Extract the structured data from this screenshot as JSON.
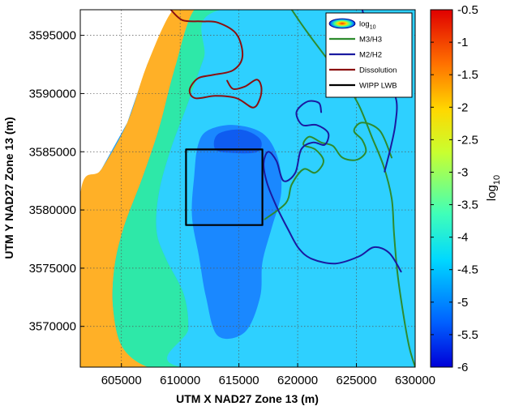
{
  "chart_data": {
    "type": "heatmap",
    "title": "",
    "xlabel": "UTM X NAD27 Zone 13 (m)",
    "ylabel": "UTM Y NAD27 Zone 13 (m)",
    "xlim": [
      601500,
      630000
    ],
    "ylim": [
      3566500,
      3597200
    ],
    "x_ticks": [
      605000,
      610000,
      615000,
      620000,
      625000,
      630000
    ],
    "x_tick_labels": [
      "605000",
      "610000",
      "615000",
      "620000",
      "625000",
      "630000"
    ],
    "y_ticks": [
      3570000,
      3575000,
      3580000,
      3585000,
      3590000,
      3595000
    ],
    "y_tick_labels": [
      "3570000",
      "3575000",
      "3580000",
      "3585000",
      "3590000",
      "3595000"
    ],
    "grid": true,
    "colorbar": {
      "label": "log",
      "label_sub": "10",
      "range": [
        -6,
        -0.5
      ],
      "ticks": [
        -0.5,
        -1,
        -1.5,
        -2,
        -2.5,
        -3,
        -3.5,
        -4,
        -4.5,
        -5,
        -5.5,
        -6
      ],
      "tick_labels": [
        "-0.5",
        "-1",
        "-1.5",
        "-2",
        "-2.5",
        "-3",
        "-3.5",
        "-4",
        "-4.5",
        "-5",
        "-5.5",
        "-6"
      ],
      "colormap": "jet"
    },
    "legend": {
      "placement": "top-right",
      "entries": [
        {
          "name": "log",
          "sub": "10",
          "kind": "swatch"
        },
        {
          "name": "M3/H3",
          "color": "#2e8b2e",
          "kind": "line"
        },
        {
          "name": "M2/H2",
          "color": "#1a1aa0",
          "kind": "line"
        },
        {
          "name": "Dissolution",
          "color": "#8b1010",
          "kind": "line"
        },
        {
          "name": "WIPP LWB",
          "color": "#000000",
          "kind": "line"
        }
      ]
    },
    "regions": [
      {
        "name": "no-data",
        "value": null,
        "color": "#ffffff",
        "points": [
          [
            601500,
            3597200
          ],
          [
            609400,
            3597200
          ],
          [
            607200,
            3592500
          ],
          [
            605500,
            3587500
          ],
          [
            603300,
            3583500
          ],
          [
            601500,
            3581200
          ]
        ]
      },
      {
        "name": "orange-zone",
        "value": -1.6,
        "color": "#ffb027",
        "points": [
          [
            601500,
            3581200
          ],
          [
            603300,
            3583500
          ],
          [
            605500,
            3587500
          ],
          [
            607200,
            3592500
          ],
          [
            609400,
            3597200
          ],
          [
            611200,
            3597200
          ],
          [
            609500,
            3592000
          ],
          [
            608200,
            3587000
          ],
          [
            606800,
            3582800
          ],
          [
            605200,
            3578500
          ],
          [
            604400,
            3575000
          ],
          [
            604300,
            3571500
          ],
          [
            605100,
            3568200
          ],
          [
            607300,
            3566500
          ],
          [
            601500,
            3566500
          ]
        ]
      },
      {
        "name": "green-zone",
        "value": -4.2,
        "color": "#2ee8a8",
        "points": [
          [
            611200,
            3597200
          ],
          [
            613500,
            3597200
          ],
          [
            612000,
            3593000
          ],
          [
            610600,
            3589000
          ],
          [
            609200,
            3585200
          ],
          [
            608200,
            3581500
          ],
          [
            608000,
            3578200
          ],
          [
            608800,
            3575800
          ],
          [
            610300,
            3572800
          ],
          [
            610700,
            3569800
          ],
          [
            610200,
            3566500
          ],
          [
            607300,
            3566500
          ],
          [
            605100,
            3568200
          ],
          [
            604300,
            3571500
          ],
          [
            604400,
            3575000
          ],
          [
            605200,
            3578500
          ],
          [
            606800,
            3582800
          ],
          [
            608200,
            3587000
          ],
          [
            609500,
            3592000
          ]
        ]
      },
      {
        "name": "cyan-zone",
        "value": -4.6,
        "color": "#2ed0ff",
        "points": [
          [
            613500,
            3597200
          ],
          [
            630000,
            3597200
          ],
          [
            630000,
            3566500
          ],
          [
            610200,
            3566500
          ],
          [
            610700,
            3569800
          ],
          [
            610300,
            3572800
          ],
          [
            608800,
            3575800
          ],
          [
            608000,
            3578200
          ],
          [
            608200,
            3581500
          ],
          [
            609200,
            3585200
          ],
          [
            610600,
            3589000
          ],
          [
            612000,
            3593000
          ]
        ]
      },
      {
        "name": "blue-core",
        "value": -5.3,
        "color": "#1a88ff",
        "points": [
          [
            612300,
            3586800
          ],
          [
            614500,
            3587300
          ],
          [
            617000,
            3586600
          ],
          [
            618300,
            3584500
          ],
          [
            618600,
            3581500
          ],
          [
            617800,
            3578500
          ],
          [
            617000,
            3575500
          ],
          [
            616800,
            3572500
          ],
          [
            615500,
            3569500
          ],
          [
            613200,
            3569200
          ],
          [
            612200,
            3572500
          ],
          [
            611600,
            3576000
          ],
          [
            611000,
            3579500
          ],
          [
            611200,
            3583000
          ],
          [
            611500,
            3585500
          ]
        ]
      },
      {
        "name": "deep-blue-spot",
        "value": -5.7,
        "color": "#0f5cf0",
        "points": [
          [
            613200,
            3586500
          ],
          [
            615200,
            3586900
          ],
          [
            616800,
            3586100
          ],
          [
            616600,
            3585000
          ],
          [
            614500,
            3584900
          ],
          [
            613000,
            3585200
          ]
        ]
      }
    ],
    "series": [
      {
        "name": "Dissolution",
        "color": "#8b1010",
        "lines": [
          [
            [
              609200,
              3597200
            ],
            [
              610200,
              3596300
            ],
            [
              611800,
              3596200
            ],
            [
              613200,
              3596100
            ],
            [
              614800,
              3595100
            ],
            [
              615300,
              3593200
            ],
            [
              614500,
              3592000
            ],
            [
              612800,
              3591600
            ],
            [
              611500,
              3591300
            ],
            [
              610800,
              3590300
            ],
            [
              611300,
              3589600
            ],
            [
              613000,
              3589800
            ],
            [
              614800,
              3589600
            ],
            [
              616200,
              3588800
            ],
            [
              616800,
              3589600
            ],
            [
              616900,
              3590600
            ],
            [
              616500,
              3591200
            ],
            [
              615500,
              3590600
            ],
            [
              614500,
              3590400
            ],
            [
              614000,
              3591100
            ]
          ]
        ]
      },
      {
        "name": "M3/H3",
        "color": "#2e8b2e",
        "lines": [
          [
            [
              619500,
              3597200
            ],
            [
              620300,
              3596000
            ],
            [
              621300,
              3594600
            ],
            [
              622800,
              3592600
            ],
            [
              624300,
              3590600
            ],
            [
              625300,
              3588800
            ],
            [
              626300,
              3586300
            ],
            [
              627300,
              3583800
            ],
            [
              628000,
              3581000
            ],
            [
              628200,
              3578000
            ],
            [
              628500,
              3574500
            ],
            [
              629000,
              3571000
            ],
            [
              629500,
              3568200
            ],
            [
              630000,
              3566500
            ]
          ],
          [
            [
              617200,
              3579200
            ],
            [
              619000,
              3580600
            ],
            [
              619500,
              3582200
            ],
            [
              620500,
              3583500
            ],
            [
              621500,
              3583200
            ],
            [
              622200,
              3584200
            ],
            [
              621500,
              3585200
            ],
            [
              620500,
              3585600
            ],
            [
              621000,
              3586300
            ],
            [
              622000,
              3585800
            ],
            [
              623000,
              3585500
            ],
            [
              623800,
              3584500
            ],
            [
              625000,
              3584300
            ],
            [
              625800,
              3585000
            ],
            [
              625500,
              3586000
            ],
            [
              624800,
              3586800
            ],
            [
              625500,
              3587500
            ],
            [
              627000,
              3586800
            ],
            [
              628000,
              3584500
            ]
          ]
        ]
      },
      {
        "name": "M2/H2",
        "color": "#1a1aa0",
        "lines": [
          [
            [
              625500,
              3597200
            ],
            [
              625800,
              3595500
            ],
            [
              624700,
              3594500
            ],
            [
              624800,
              3593500
            ],
            [
              626000,
              3592600
            ],
            [
              627600,
              3591200
            ],
            [
              628400,
              3589400
            ],
            [
              628300,
              3587300
            ],
            [
              627900,
              3585300
            ],
            [
              627400,
              3583300
            ]
          ],
          [
            [
              628800,
              3574700
            ],
            [
              627800,
              3576300
            ],
            [
              626500,
              3576800
            ],
            [
              625200,
              3576000
            ],
            [
              623200,
              3575400
            ],
            [
              621200,
              3575800
            ],
            [
              620100,
              3576700
            ],
            [
              619200,
              3578300
            ],
            [
              618200,
              3580300
            ],
            [
              617400,
              3582300
            ],
            [
              617100,
              3584000
            ],
            [
              617500,
              3585000
            ],
            [
              618200,
              3584200
            ],
            [
              618800,
              3582500
            ],
            [
              619800,
              3583200
            ],
            [
              620300,
              3585200
            ],
            [
              621300,
              3585800
            ],
            [
              622300,
              3585600
            ],
            [
              622600,
              3586600
            ],
            [
              621600,
              3587300
            ],
            [
              620400,
              3587300
            ],
            [
              619900,
              3588400
            ],
            [
              620800,
              3589300
            ],
            [
              621800,
              3589200
            ],
            [
              622000,
              3588400
            ]
          ]
        ]
      },
      {
        "name": "WIPP LWB",
        "color": "#000000",
        "lines": [
          [
            [
              610500,
              3585200
            ],
            [
              617000,
              3585200
            ],
            [
              617000,
              3578700
            ],
            [
              610500,
              3578700
            ],
            [
              610500,
              3585200
            ]
          ]
        ]
      }
    ]
  }
}
